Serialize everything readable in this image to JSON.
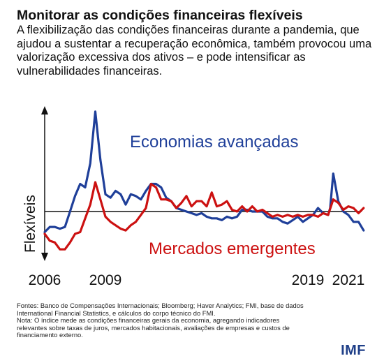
{
  "header": {
    "title": "Monitorar as condições financeiras flexíveis",
    "subtitle": "A flexibilização das condições financeiras durante a pandemia, que ajudou a sustentar a recuperação econômica, também provocou uma valorização excessiva dos ativos – e pode intensificar as vulnerabilidades financeiras."
  },
  "chart_data": {
    "type": "line",
    "ylabel": "Flexíveis",
    "x_tick_labels": [
      "2006",
      "2009",
      "2019",
      "2021"
    ],
    "x_tick_years": [
      2006,
      2009,
      2019,
      2021
    ],
    "xlim": [
      2006.0,
      2022.0
    ],
    "ylim": [
      -1.4,
      3.0
    ],
    "baseline": 0,
    "series": [
      {
        "name": "Economias avançadas",
        "color": "#1f3f99",
        "label_position": "upper-middle",
        "x": [
          2006.0,
          2006.25,
          2006.5,
          2006.75,
          2007.0,
          2007.25,
          2007.5,
          2007.75,
          2008.0,
          2008.25,
          2008.5,
          2008.75,
          2009.0,
          2009.25,
          2009.5,
          2009.75,
          2010.0,
          2010.25,
          2010.5,
          2010.75,
          2011.0,
          2011.25,
          2011.5,
          2011.75,
          2012.0,
          2012.25,
          2012.5,
          2012.75,
          2013.0,
          2013.25,
          2013.5,
          2013.75,
          2014.0,
          2014.25,
          2014.5,
          2014.75,
          2015.0,
          2015.25,
          2015.5,
          2015.75,
          2016.0,
          2016.25,
          2016.5,
          2016.75,
          2017.0,
          2017.25,
          2017.5,
          2017.75,
          2018.0,
          2018.25,
          2018.5,
          2018.75,
          2019.0,
          2019.25,
          2019.5,
          2019.75,
          2020.0,
          2020.1,
          2020.25,
          2020.5,
          2020.75,
          2021.0,
          2021.25,
          2021.5,
          2021.75
        ],
        "y": [
          -0.6,
          -0.45,
          -0.45,
          -0.5,
          -0.45,
          0.0,
          0.45,
          0.8,
          0.7,
          1.4,
          2.9,
          1.5,
          0.5,
          0.4,
          0.6,
          0.5,
          0.2,
          0.5,
          0.45,
          0.35,
          0.6,
          0.8,
          0.8,
          0.7,
          0.4,
          0.3,
          0.1,
          0.05,
          0.0,
          -0.05,
          -0.1,
          -0.05,
          -0.15,
          -0.2,
          -0.2,
          -0.25,
          -0.15,
          -0.2,
          -0.15,
          0.05,
          0.05,
          0.0,
          0.0,
          0.0,
          -0.15,
          -0.2,
          -0.2,
          -0.3,
          -0.35,
          -0.25,
          -0.15,
          -0.3,
          -0.2,
          -0.1,
          0.1,
          -0.05,
          -0.1,
          0.1,
          1.1,
          0.3,
          0.0,
          -0.1,
          -0.3,
          -0.3,
          -0.55
        ]
      },
      {
        "name": "Mercados emergentes",
        "color": "#cc1111",
        "label_position": "lower-right",
        "x": [
          2006.0,
          2006.25,
          2006.5,
          2006.75,
          2007.0,
          2007.25,
          2007.5,
          2007.75,
          2008.0,
          2008.25,
          2008.5,
          2008.75,
          2009.0,
          2009.25,
          2009.5,
          2009.75,
          2010.0,
          2010.25,
          2010.5,
          2010.75,
          2011.0,
          2011.25,
          2011.5,
          2011.75,
          2012.0,
          2012.25,
          2012.5,
          2012.75,
          2013.0,
          2013.25,
          2013.5,
          2013.75,
          2014.0,
          2014.25,
          2014.5,
          2014.75,
          2015.0,
          2015.25,
          2015.5,
          2015.75,
          2016.0,
          2016.25,
          2016.5,
          2016.75,
          2017.0,
          2017.25,
          2017.5,
          2017.75,
          2018.0,
          2018.25,
          2018.5,
          2018.75,
          2019.0,
          2019.25,
          2019.5,
          2019.75,
          2020.0,
          2020.25,
          2020.5,
          2020.75,
          2021.0,
          2021.25,
          2021.5,
          2021.75
        ],
        "y": [
          -0.65,
          -0.85,
          -0.9,
          -1.1,
          -1.1,
          -0.9,
          -0.65,
          -0.6,
          -0.2,
          0.2,
          0.85,
          0.35,
          -0.15,
          -0.3,
          -0.4,
          -0.5,
          -0.55,
          -0.4,
          -0.3,
          -0.1,
          0.1,
          0.8,
          0.7,
          0.35,
          0.35,
          0.3,
          0.1,
          0.25,
          0.45,
          0.15,
          0.3,
          0.3,
          0.15,
          0.55,
          0.15,
          0.2,
          0.3,
          0.05,
          0.0,
          0.15,
          0.0,
          0.15,
          0.0,
          0.05,
          -0.05,
          -0.15,
          -0.1,
          -0.15,
          -0.1,
          -0.15,
          -0.1,
          -0.15,
          -0.1,
          -0.1,
          -0.15,
          -0.05,
          -0.1,
          0.35,
          0.25,
          0.05,
          0.15,
          0.1,
          -0.05,
          0.1
        ]
      }
    ]
  },
  "footnotes": {
    "line1": "Fontes: Banco de Compensações Internacionais; Bloomberg; Haver Analytics; FMI, base de dados",
    "line2": "International Financial Statistics, e cálculos do corpo técnico do FMI.",
    "line3": "Nota: O índice mede as condições financeiras gerais da economia, agregando indicadores",
    "line4": "relevantes sobre taxas de juros, mercados habitacionais, avaliações de empresas e custos de",
    "line5": "financiamento externo."
  },
  "brand": {
    "logo": "IMF",
    "color": "#1f3f88"
  }
}
